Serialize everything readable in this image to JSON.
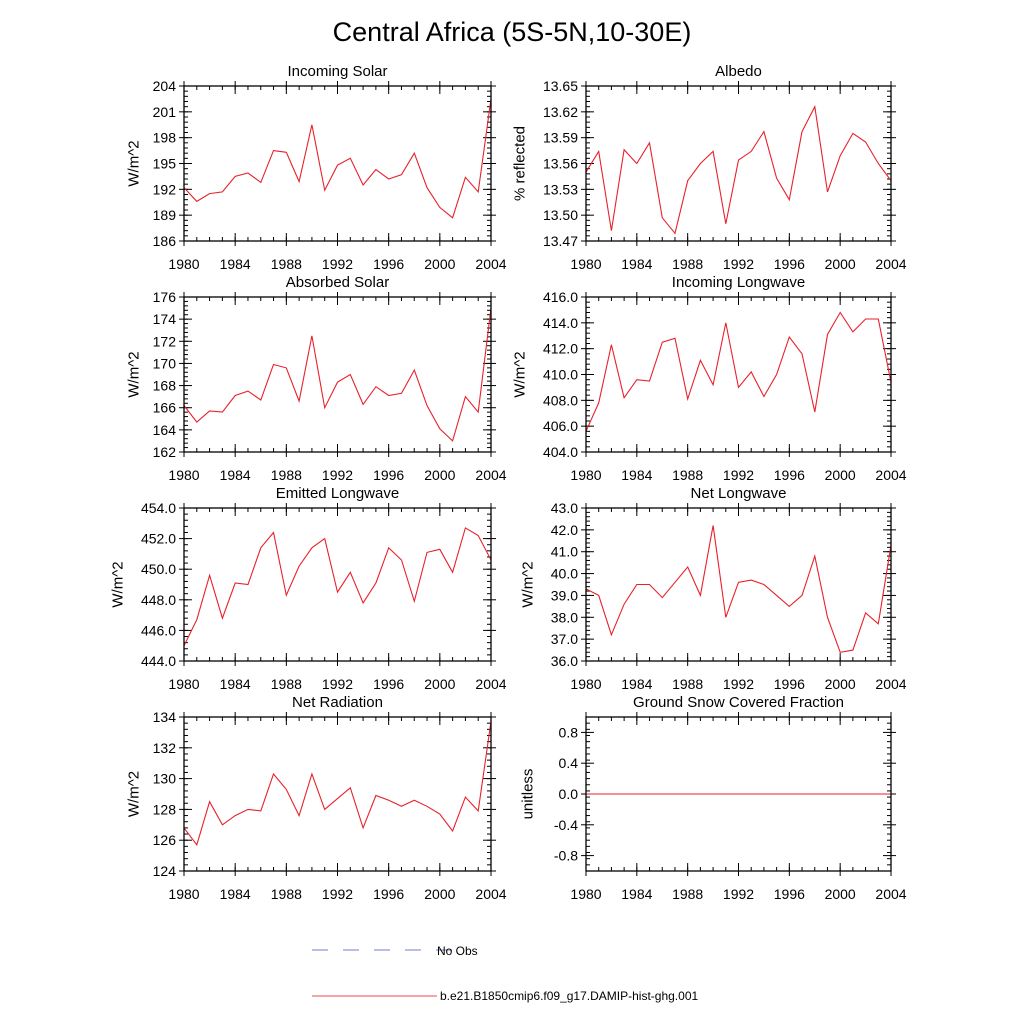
{
  "figure_title": "Central Africa (5S-5N,10-30E)",
  "legend": [
    {
      "label": "No Obs",
      "color": "#6f7fc9",
      "style": "dashed"
    },
    {
      "label": "b.e21.B1850cmip6.f09_g17.DAMIP-hist-ghg.001",
      "color": "#e8474c",
      "style": "solid"
    }
  ],
  "line_color": "#e8212b",
  "chart_data": [
    {
      "type": "line",
      "title": "Incoming Solar",
      "ylabel": "W/m^2",
      "xlim": [
        1980,
        2004
      ],
      "ylim": [
        186,
        204
      ],
      "xticks": [
        1980,
        1984,
        1988,
        1992,
        1996,
        2000,
        2004
      ],
      "xtick_labels": [
        "1980",
        "1984",
        "1988",
        "1992",
        "1996",
        "2000",
        "2004"
      ],
      "yticks": [
        186,
        189,
        192,
        195,
        198,
        201,
        204
      ],
      "ytick_labels": [
        "186",
        "189",
        "192",
        "195",
        "198",
        "201",
        "204"
      ],
      "series": [
        {
          "x": [
            1980,
            1981,
            1982,
            1983,
            1984,
            1985,
            1986,
            1987,
            1988,
            1989,
            1990,
            1991,
            1992,
            1993,
            1994,
            1995,
            1996,
            1997,
            1998,
            1999,
            2000,
            2001,
            2002,
            2003,
            2004
          ],
          "y": [
            192.2,
            190.6,
            191.5,
            191.7,
            193.5,
            193.9,
            192.8,
            196.5,
            196.3,
            192.9,
            199.5,
            191.9,
            194.8,
            195.6,
            192.5,
            194.3,
            193.2,
            193.7,
            196.2,
            192.2,
            189.9,
            188.7,
            193.4,
            191.7,
            202.5
          ]
        }
      ]
    },
    {
      "type": "line",
      "title": "Albedo",
      "ylabel": "% reflected",
      "xlim": [
        1980,
        2004
      ],
      "ylim": [
        13.47,
        13.65
      ],
      "xticks": [
        1980,
        1984,
        1988,
        1992,
        1996,
        2000,
        2004
      ],
      "xtick_labels": [
        "1980",
        "1984",
        "1988",
        "1992",
        "1996",
        "2000",
        "2004"
      ],
      "yticks": [
        13.47,
        13.5,
        13.53,
        13.56,
        13.59,
        13.62,
        13.65
      ],
      "ytick_labels": [
        "13.47",
        "13.50",
        "13.53",
        "13.56",
        "13.59",
        "13.62",
        "13.65"
      ],
      "series": [
        {
          "x": [
            1980,
            1981,
            1982,
            1983,
            1984,
            1985,
            1986,
            1987,
            1988,
            1989,
            1990,
            1991,
            1992,
            1993,
            1994,
            1995,
            1996,
            1997,
            1998,
            1999,
            2000,
            2001,
            2002,
            2003,
            2004
          ],
          "y": [
            13.55,
            13.574,
            13.482,
            13.576,
            13.56,
            13.584,
            13.497,
            13.479,
            13.54,
            13.56,
            13.574,
            13.49,
            13.564,
            13.574,
            13.597,
            13.543,
            13.518,
            13.597,
            13.626,
            13.527,
            13.569,
            13.595,
            13.585,
            13.56,
            13.54
          ]
        }
      ]
    },
    {
      "type": "line",
      "title": "Absorbed Solar",
      "ylabel": "W/m^2",
      "xlim": [
        1980,
        2004
      ],
      "ylim": [
        162,
        176
      ],
      "xticks": [
        1980,
        1984,
        1988,
        1992,
        1996,
        2000,
        2004
      ],
      "xtick_labels": [
        "1980",
        "1984",
        "1988",
        "1992",
        "1996",
        "2000",
        "2004"
      ],
      "yticks": [
        162,
        164,
        166,
        168,
        170,
        172,
        174,
        176
      ],
      "ytick_labels": [
        "162",
        "164",
        "166",
        "168",
        "170",
        "172",
        "174",
        "176"
      ],
      "series": [
        {
          "x": [
            1980,
            1981,
            1982,
            1983,
            1984,
            1985,
            1986,
            1987,
            1988,
            1989,
            1990,
            1991,
            1992,
            1993,
            1994,
            1995,
            1996,
            1997,
            1998,
            1999,
            2000,
            2001,
            2002,
            2003,
            2004
          ],
          "y": [
            166.2,
            164.7,
            165.7,
            165.6,
            167.1,
            167.5,
            166.7,
            169.9,
            169.6,
            166.6,
            172.5,
            166.0,
            168.3,
            169.0,
            166.3,
            167.9,
            167.1,
            167.3,
            169.4,
            166.2,
            164.1,
            163.0,
            167.0,
            165.6,
            175.0
          ]
        }
      ]
    },
    {
      "type": "line",
      "title": "Incoming Longwave",
      "ylabel": "W/m^2",
      "xlim": [
        1980,
        2004
      ],
      "ylim": [
        404.0,
        416.0
      ],
      "xticks": [
        1980,
        1984,
        1988,
        1992,
        1996,
        2000,
        2004
      ],
      "xtick_labels": [
        "1980",
        "1984",
        "1988",
        "1992",
        "1996",
        "2000",
        "2004"
      ],
      "yticks": [
        404.0,
        406.0,
        408.0,
        410.0,
        412.0,
        414.0,
        416.0
      ],
      "ytick_labels": [
        "404.0",
        "406.0",
        "408.0",
        "410.0",
        "412.0",
        "414.0",
        "416.0"
      ],
      "series": [
        {
          "x": [
            1980,
            1981,
            1982,
            1983,
            1984,
            1985,
            1986,
            1987,
            1988,
            1989,
            1990,
            1991,
            1992,
            1993,
            1994,
            1995,
            1996,
            1997,
            1998,
            1999,
            2000,
            2001,
            2002,
            2003,
            2004
          ],
          "y": [
            405.6,
            407.8,
            412.3,
            408.2,
            409.6,
            409.5,
            412.5,
            412.8,
            408.1,
            411.1,
            409.2,
            414.0,
            409.0,
            410.2,
            408.3,
            410.0,
            412.9,
            411.6,
            407.1,
            413.1,
            414.8,
            413.3,
            414.3,
            414.3,
            409.4
          ]
        }
      ]
    },
    {
      "type": "line",
      "title": "Emitted Longwave",
      "ylabel": "W/m^2",
      "xlim": [
        1980,
        2004
      ],
      "ylim": [
        444.0,
        454.0
      ],
      "xticks": [
        1980,
        1984,
        1988,
        1992,
        1996,
        2000,
        2004
      ],
      "xtick_labels": [
        "1980",
        "1984",
        "1988",
        "1992",
        "1996",
        "2000",
        "2004"
      ],
      "yticks": [
        444.0,
        446.0,
        448.0,
        450.0,
        452.0,
        454.0
      ],
      "ytick_labels": [
        "444.0",
        "446.0",
        "448.0",
        "450.0",
        "452.0",
        "454.0"
      ],
      "series": [
        {
          "x": [
            1980,
            1981,
            1982,
            1983,
            1984,
            1985,
            1986,
            1987,
            1988,
            1989,
            1990,
            1991,
            1992,
            1993,
            1994,
            1995,
            1996,
            1997,
            1998,
            1999,
            2000,
            2001,
            2002,
            2003,
            2004
          ],
          "y": [
            445.0,
            446.7,
            449.6,
            446.8,
            449.1,
            449.0,
            451.4,
            452.4,
            448.3,
            450.2,
            451.4,
            452.0,
            448.5,
            449.8,
            447.8,
            449.1,
            451.4,
            450.6,
            447.9,
            451.1,
            451.3,
            449.8,
            452.7,
            452.2,
            450.6
          ]
        }
      ]
    },
    {
      "type": "line",
      "title": "Net Longwave",
      "ylabel": "W/m^2",
      "xlim": [
        1980,
        2004
      ],
      "ylim": [
        36.0,
        43.0
      ],
      "xticks": [
        1980,
        1984,
        1988,
        1992,
        1996,
        2000,
        2004
      ],
      "xtick_labels": [
        "1980",
        "1984",
        "1988",
        "1992",
        "1996",
        "2000",
        "2004"
      ],
      "yticks": [
        36.0,
        37.0,
        38.0,
        39.0,
        40.0,
        41.0,
        42.0,
        43.0
      ],
      "ytick_labels": [
        "36.0",
        "37.0",
        "38.0",
        "39.0",
        "40.0",
        "41.0",
        "42.0",
        "43.0"
      ],
      "series": [
        {
          "x": [
            1980,
            1981,
            1982,
            1983,
            1984,
            1985,
            1986,
            1987,
            1988,
            1989,
            1990,
            1991,
            1992,
            1993,
            1994,
            1995,
            1996,
            1997,
            1998,
            1999,
            2000,
            2001,
            2002,
            2003,
            2004
          ],
          "y": [
            39.3,
            39.0,
            37.2,
            38.6,
            39.5,
            39.5,
            38.9,
            39.6,
            40.3,
            39.0,
            42.2,
            38.0,
            39.6,
            39.7,
            39.5,
            39.0,
            38.5,
            39.0,
            40.8,
            38.0,
            36.4,
            36.5,
            38.2,
            37.7,
            41.3
          ]
        }
      ]
    },
    {
      "type": "line",
      "title": "Net Radiation",
      "ylabel": "W/m^2",
      "xlim": [
        1980,
        2004
      ],
      "ylim": [
        124,
        134
      ],
      "xticks": [
        1980,
        1984,
        1988,
        1992,
        1996,
        2000,
        2004
      ],
      "xtick_labels": [
        "1980",
        "1984",
        "1988",
        "1992",
        "1996",
        "2000",
        "2004"
      ],
      "yticks": [
        124,
        126,
        128,
        130,
        132,
        134
      ],
      "ytick_labels": [
        "124",
        "126",
        "128",
        "130",
        "132",
        "134"
      ],
      "series": [
        {
          "x": [
            1980,
            1981,
            1982,
            1983,
            1984,
            1985,
            1986,
            1987,
            1988,
            1989,
            1990,
            1991,
            1992,
            1993,
            1994,
            1995,
            1996,
            1997,
            1998,
            1999,
            2000,
            2001,
            2002,
            2003,
            2004
          ],
          "y": [
            126.8,
            125.7,
            128.5,
            127.0,
            127.6,
            128.0,
            127.9,
            130.3,
            129.3,
            127.6,
            130.3,
            128.0,
            128.7,
            129.4,
            126.8,
            128.9,
            128.6,
            128.2,
            128.6,
            128.2,
            127.7,
            126.6,
            128.8,
            127.9,
            133.7
          ]
        }
      ]
    },
    {
      "type": "line",
      "title": "Ground Snow Covered Fraction",
      "ylabel": "unitless",
      "xlim": [
        1980,
        2004
      ],
      "ylim": [
        -1.0,
        1.0
      ],
      "xticks": [
        1980,
        1984,
        1988,
        1992,
        1996,
        2000,
        2004
      ],
      "xtick_labels": [
        "1980",
        "1984",
        "1988",
        "1992",
        "1996",
        "2000",
        "2004"
      ],
      "yticks": [
        -0.8,
        -0.4,
        0.0,
        0.4,
        0.8
      ],
      "ytick_labels": [
        "-0.8",
        "-0.4",
        "0.0",
        "0.4",
        "0.8"
      ],
      "series": [
        {
          "x": [
            1980,
            2004
          ],
          "y": [
            0.0,
            0.0
          ]
        }
      ]
    }
  ]
}
